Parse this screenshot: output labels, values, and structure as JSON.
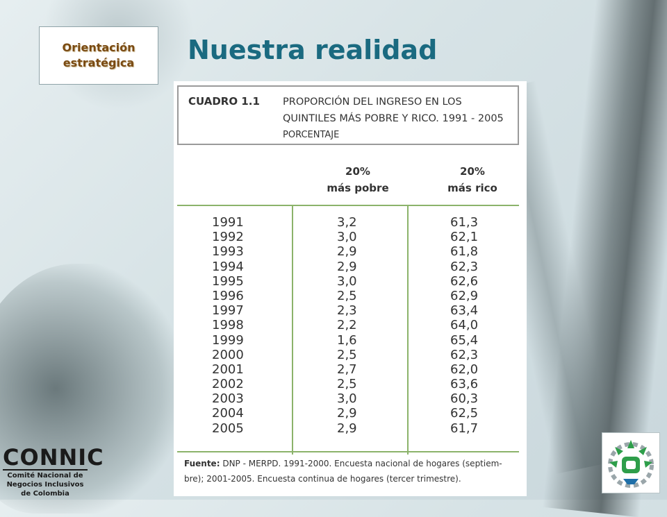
{
  "slide": {
    "title": "Nuestra realidad",
    "orientation_box": "Orientación\nestratégica"
  },
  "table": {
    "label": "CUADRO 1.1",
    "title_line1": "PROPORCIÓN DEL INGRESO EN LOS",
    "title_line2": "QUINTILES MÁS POBRE Y RICO. 1991 - 2005",
    "unit": "PORCENTAJE",
    "col_poor_line1": "20%",
    "col_poor_line2": "más pobre",
    "col_rich_line1": "20%",
    "col_rich_line2": "más rico",
    "rows": [
      {
        "year": "1991",
        "poor": "3,2",
        "rich": "61,3"
      },
      {
        "year": "1992",
        "poor": "3,0",
        "rich": "62,1"
      },
      {
        "year": "1993",
        "poor": "2,9",
        "rich": "61,8"
      },
      {
        "year": "1994",
        "poor": "2,9",
        "rich": "62,3"
      },
      {
        "year": "1995",
        "poor": "3,0",
        "rich": "62,6"
      },
      {
        "year": "1996",
        "poor": "2,5",
        "rich": "62,9"
      },
      {
        "year": "1997",
        "poor": "2,3",
        "rich": "63,4"
      },
      {
        "year": "1998",
        "poor": "2,2",
        "rich": "64,0"
      },
      {
        "year": "1999",
        "poor": "1,6",
        "rich": "65,4"
      },
      {
        "year": "2000",
        "poor": "2,5",
        "rich": "62,3"
      },
      {
        "year": "2001",
        "poor": "2,7",
        "rich": "62,0"
      },
      {
        "year": "2002",
        "poor": "2,5",
        "rich": "63,6"
      },
      {
        "year": "2003",
        "poor": "3,0",
        "rich": "60,3"
      },
      {
        "year": "2004",
        "poor": "2,9",
        "rich": "62,5"
      },
      {
        "year": "2005",
        "poor": "2,9",
        "rich": "61,7"
      }
    ],
    "source_label": "Fuente:",
    "source_line1": "DNP - MERPD. 1991-2000. Encuesta nacional de hogares (septiem-",
    "source_line2": "bre); 2001-2005. Encuesta continua de hogares (tercer trimestre)."
  },
  "connic": {
    "wordmark": "CONNIC",
    "subtitle": "Comité Nacional de\nNegocios Inclusivos\nde Colombia"
  },
  "colors": {
    "title": "#1a6a80",
    "orientation_text": "#7a4a12",
    "table_rule": "#8bb36a",
    "eco_logo_green": "#2e9e4a"
  },
  "icons": {
    "eco_logo": "gear-leaf-logo-icon"
  }
}
